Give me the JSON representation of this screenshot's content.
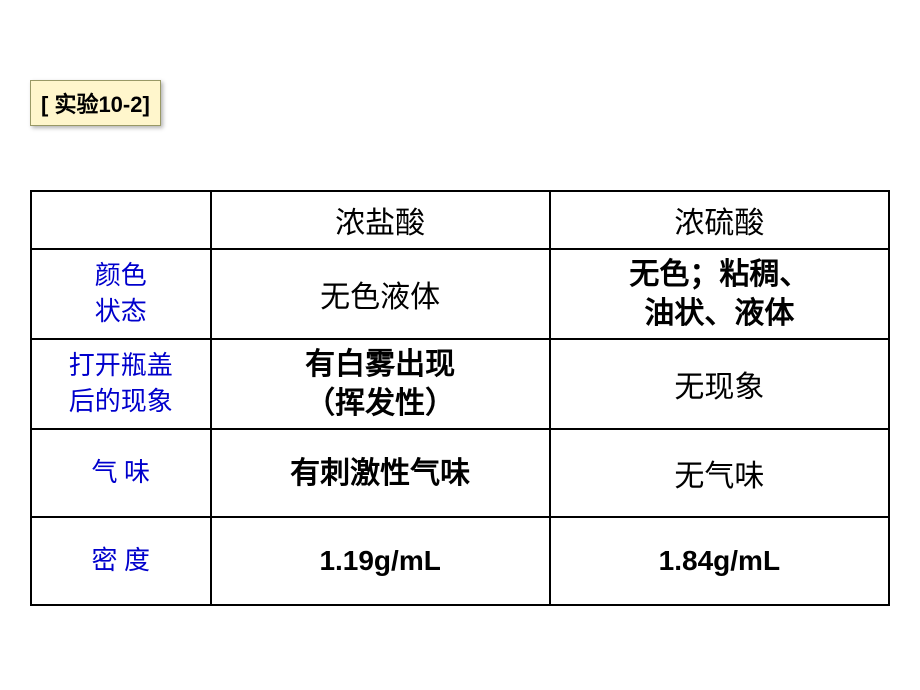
{
  "badge": {
    "text": "[ 实验10-2]"
  },
  "table": {
    "columns": [
      "",
      "浓盐酸",
      "浓硫酸"
    ],
    "rows": [
      {
        "label_line1": "颜色",
        "label_line2": "状态",
        "col2": "无色液体",
        "col3_line1": "无色；粘稠、",
        "col3_line2": "油状、液体"
      },
      {
        "label_line1": "打开瓶盖",
        "label_line2": "后的现象",
        "col2_line1": "有白雾出现",
        "col2_line2": "（挥发性）",
        "col3": "无现象"
      },
      {
        "label": "气 味",
        "col2": "有刺激性气味",
        "col3": "无气味"
      },
      {
        "label": "密 度",
        "col2": "1.19g/mL",
        "col3": "1.84g/mL"
      }
    ],
    "styling": {
      "badge_bg": "#fff6cc",
      "badge_border": "#999966",
      "label_color": "#0000cc",
      "text_color": "#000000",
      "border_color": "#000000",
      "font_size_label": 26,
      "font_size_header": 30,
      "font_size_cell": 30,
      "font_size_density": 28,
      "col1_width": 180,
      "col2_width": 340,
      "col3_width": 340
    }
  }
}
